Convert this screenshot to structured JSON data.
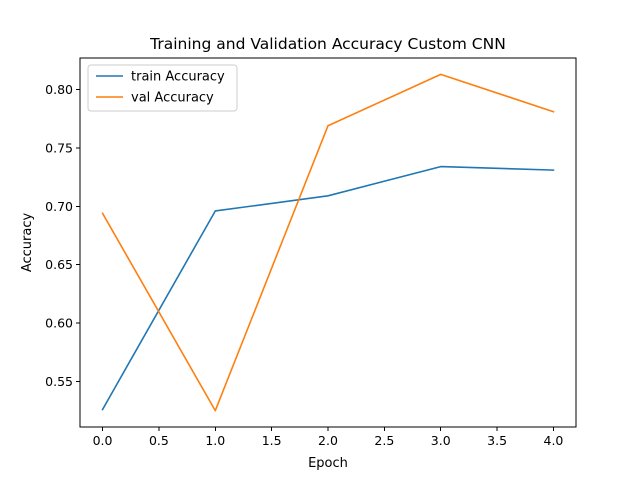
{
  "chart_data": {
    "type": "line",
    "title": "Training and Validation Accuracy Custom CNN",
    "xlabel": "Epoch",
    "ylabel": "Accuracy",
    "x": [
      0,
      1,
      2,
      3,
      4
    ],
    "xlim": [
      -0.2,
      4.2
    ],
    "ylim": [
      0.511,
      0.827
    ],
    "xticks": [
      0.0,
      0.5,
      1.0,
      1.5,
      2.0,
      2.5,
      3.0,
      3.5,
      4.0
    ],
    "xtick_labels": [
      "0.0",
      "0.5",
      "1.0",
      "1.5",
      "2.0",
      "2.5",
      "3.0",
      "3.5",
      "4.0"
    ],
    "yticks": [
      0.55,
      0.6,
      0.65,
      0.7,
      0.75,
      0.8
    ],
    "ytick_labels": [
      "0.55",
      "0.60",
      "0.65",
      "0.70",
      "0.75",
      "0.80"
    ],
    "grid": false,
    "legend_position": "top-left",
    "series": [
      {
        "name": "train Accuracy",
        "color": "#1f77b4",
        "values": [
          0.526,
          0.696,
          0.709,
          0.734,
          0.731
        ]
      },
      {
        "name": "val Accuracy",
        "color": "#ff7f0e",
        "values": [
          0.694,
          0.525,
          0.769,
          0.813,
          0.781
        ]
      }
    ]
  }
}
